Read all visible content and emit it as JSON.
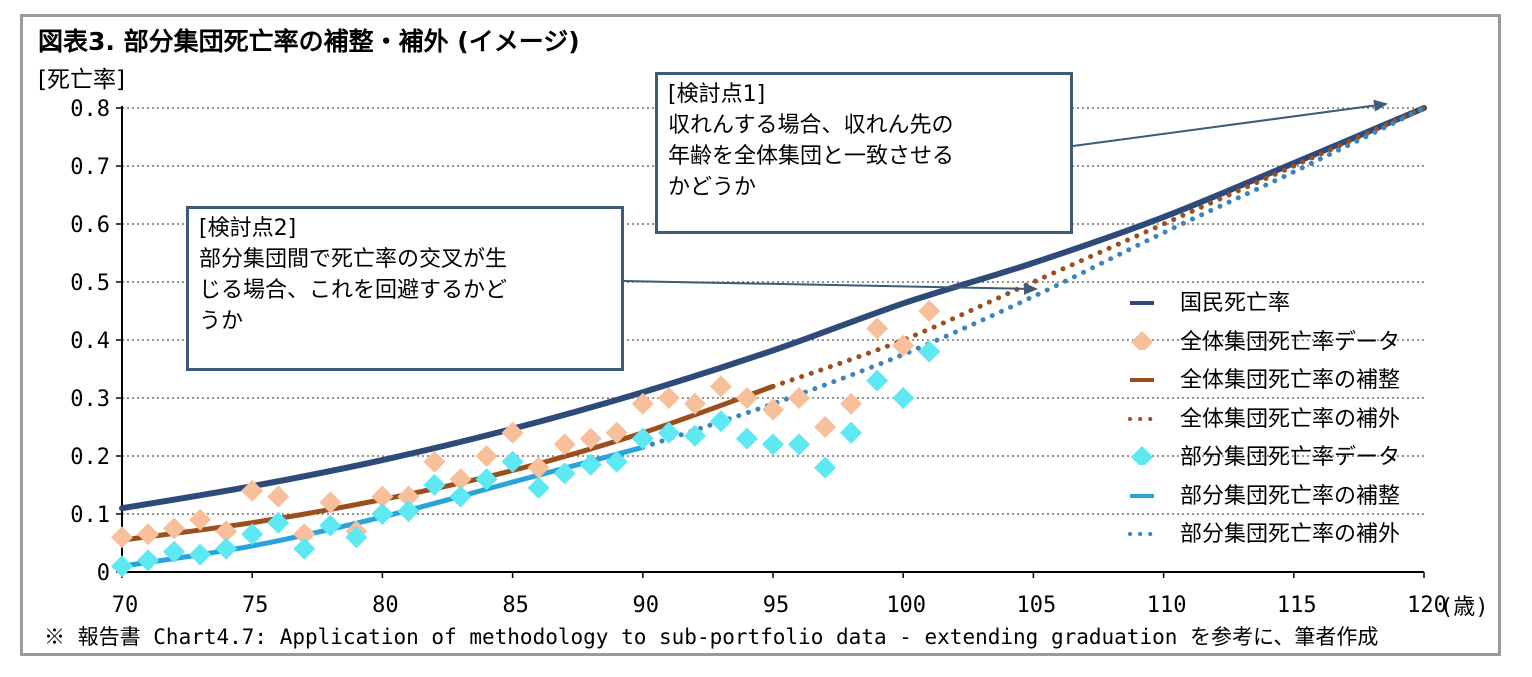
{
  "title": "図表3. 部分集団死亡率の補整・補外 (イメージ)",
  "note": "※ 報告書 Chart4.7: Application of methodology to sub-portfolio data - extending graduation を参考に、筆者作成",
  "colors": {
    "national": "#2e4a78",
    "overall_data": "#f8c09a",
    "overall_fit": "#9c4f1c",
    "sub_data": "#5ee8f2",
    "sub_fit": "#29a3dc",
    "sub_extrap": "#3a85c0",
    "callout_border": "#3e5a78",
    "arrow": "#3e5a78"
  },
  "callouts": {
    "point1": "[検討点1]\n収れんする場合、収れん先の\n年齢を全体集団と一致させる\nかどうか",
    "point2": "[検討点2]\n部分集団間で死亡率の交叉が生\nじる場合、これを回避するかど\nうか"
  },
  "chart_data": {
    "type": "line",
    "ylabel": "[死亡率]",
    "xlabel": "(歳)",
    "xlim": [
      70,
      120
    ],
    "ylim": [
      0,
      0.8
    ],
    "xticks": [
      70,
      75,
      80,
      85,
      90,
      95,
      100,
      105,
      110,
      115,
      120
    ],
    "yticks": [
      0,
      0.1,
      0.2,
      0.3,
      0.4,
      0.5,
      0.6,
      0.7,
      0.8
    ],
    "ytick_labels": [
      "0",
      "0.1",
      "0.2",
      "0.3",
      "0.4",
      "0.5",
      "0.6",
      "0.7",
      "0.8"
    ],
    "grid": "horizontal dotted",
    "legend_position": "right",
    "series": [
      {
        "name": "国民死亡率",
        "style": "line",
        "x": [
          70,
          75,
          80,
          85,
          90,
          95,
          100,
          105,
          110,
          115,
          120
        ],
        "y": [
          0.11,
          0.148,
          0.193,
          0.247,
          0.31,
          0.382,
          0.463,
          0.533,
          0.612,
          0.705,
          0.8
        ]
      },
      {
        "name": "全体集団死亡率データ",
        "style": "diamond",
        "x": [
          70,
          71,
          72,
          73,
          74,
          75,
          76,
          77,
          78,
          79,
          80,
          81,
          82,
          83,
          84,
          85,
          86,
          87,
          88,
          89,
          90,
          91,
          92,
          93,
          94,
          95,
          96,
          97,
          98,
          99,
          100,
          101
        ],
        "y": [
          0.06,
          0.065,
          0.075,
          0.09,
          0.07,
          0.14,
          0.13,
          0.065,
          0.12,
          0.07,
          0.13,
          0.13,
          0.19,
          0.16,
          0.2,
          0.24,
          0.18,
          0.22,
          0.23,
          0.24,
          0.29,
          0.3,
          0.29,
          0.32,
          0.3,
          0.28,
          0.3,
          0.25,
          0.29,
          0.42,
          0.39,
          0.45
        ]
      },
      {
        "name": "全体集団死亡率の補整",
        "style": "line",
        "x": [
          70,
          75,
          80,
          85,
          90,
          95
        ],
        "y": [
          0.055,
          0.085,
          0.125,
          0.175,
          0.24,
          0.32
        ]
      },
      {
        "name": "全体集団死亡率の補外",
        "style": "dotted",
        "x": [
          95,
          100,
          105,
          110,
          115,
          120
        ],
        "y": [
          0.32,
          0.4,
          0.5,
          0.6,
          0.7,
          0.8
        ]
      },
      {
        "name": "部分集団死亡率データ",
        "style": "diamond",
        "x": [
          70,
          71,
          72,
          73,
          74,
          75,
          76,
          77,
          78,
          79,
          80,
          81,
          82,
          83,
          84,
          85,
          86,
          87,
          88,
          89,
          90,
          91,
          92,
          93,
          94,
          95,
          96,
          97,
          98,
          99,
          100,
          101
        ],
        "y": [
          0.01,
          0.02,
          0.035,
          0.03,
          0.04,
          0.065,
          0.085,
          0.04,
          0.08,
          0.06,
          0.1,
          0.105,
          0.15,
          0.13,
          0.16,
          0.19,
          0.145,
          0.17,
          0.185,
          0.19,
          0.23,
          0.24,
          0.235,
          0.26,
          0.23,
          0.22,
          0.22,
          0.18,
          0.24,
          0.33,
          0.3,
          0.38
        ]
      },
      {
        "name": "部分集団死亡率の補整",
        "style": "line",
        "x": [
          70,
          75,
          80,
          85,
          90
        ],
        "y": [
          0.01,
          0.045,
          0.095,
          0.155,
          0.215
        ]
      },
      {
        "name": "部分集団死亡率の補外",
        "style": "dotted",
        "x": [
          90,
          95,
          100,
          105,
          110,
          115,
          120
        ],
        "y": [
          0.215,
          0.29,
          0.375,
          0.475,
          0.585,
          0.69,
          0.8
        ]
      }
    ]
  }
}
